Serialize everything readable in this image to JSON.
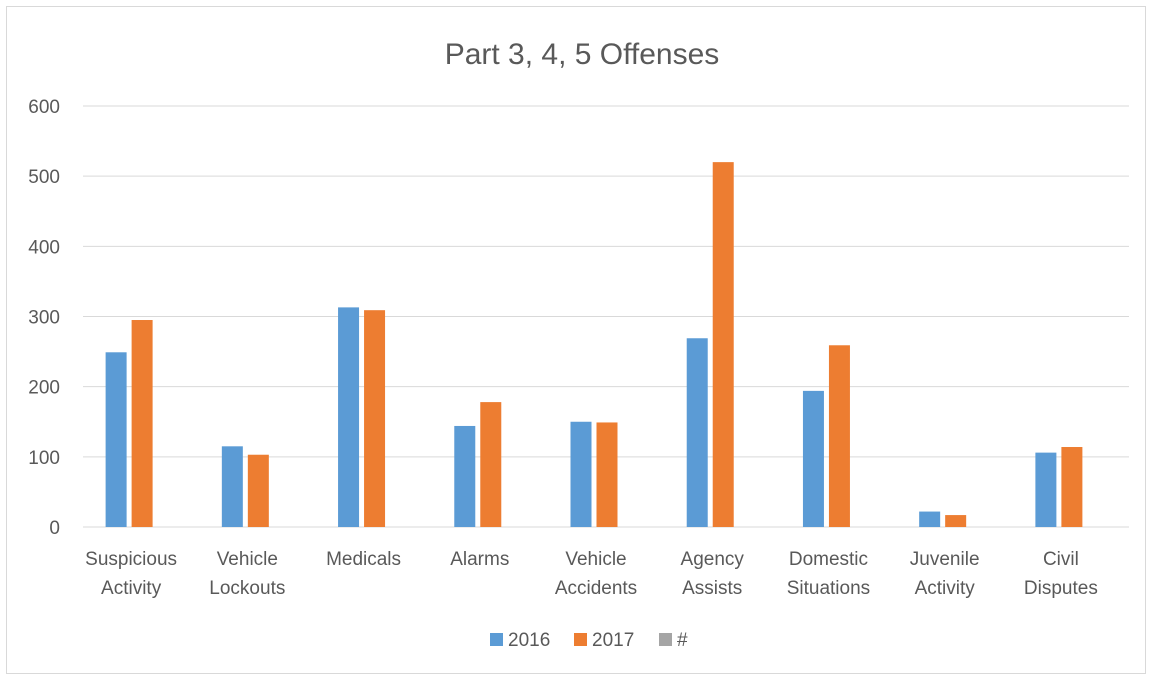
{
  "chart_data": {
    "type": "bar",
    "title": "Part 3, 4, 5 Offenses",
    "xlabel": "",
    "ylabel": "",
    "ylim": [
      0,
      600
    ],
    "yticks": [
      0,
      100,
      200,
      300,
      400,
      500,
      600
    ],
    "grid": true,
    "legend_position": "bottom",
    "categories": [
      [
        "Suspicious",
        "Activity"
      ],
      [
        "Vehicle",
        "Lockouts"
      ],
      [
        "Medicals"
      ],
      [
        "Alarms"
      ],
      [
        "Vehicle",
        "Accidents"
      ],
      [
        "Agency",
        "Assists"
      ],
      [
        "Domestic",
        "Situations"
      ],
      [
        "Juvenile",
        "Activity"
      ],
      [
        "Civil",
        "Disputes"
      ]
    ],
    "series": [
      {
        "name": "2016",
        "color": "#5b9bd5",
        "values": [
          249,
          115,
          313,
          144,
          150,
          269,
          194,
          22,
          106
        ]
      },
      {
        "name": "2017",
        "color": "#ed7d31",
        "values": [
          295,
          103,
          309,
          178,
          149,
          520,
          259,
          17,
          114
        ]
      },
      {
        "name": "#",
        "color": "#a5a5a5",
        "values": [
          0,
          0,
          0,
          0,
          0,
          0,
          0,
          0,
          0
        ]
      }
    ]
  }
}
